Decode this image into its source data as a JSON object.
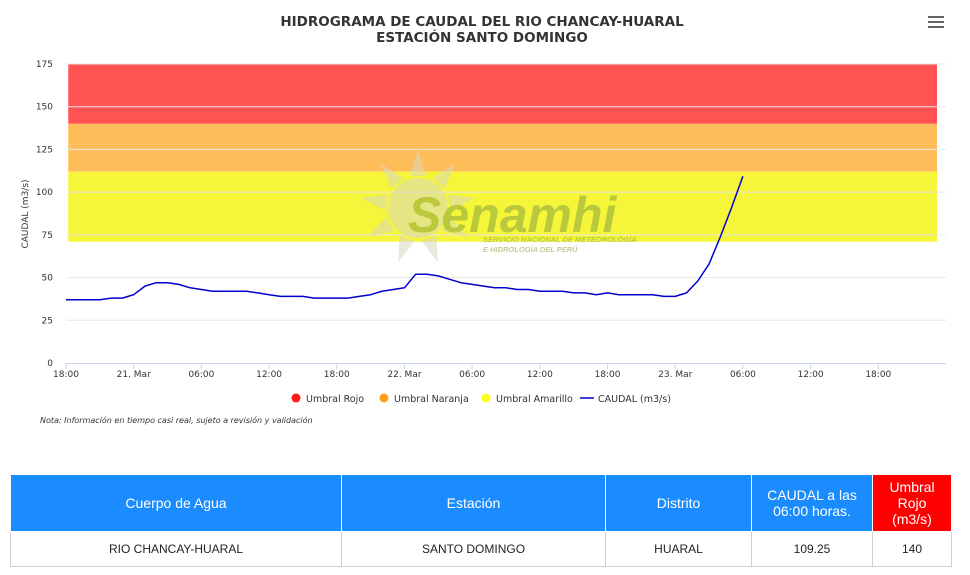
{
  "header": {
    "title_line1": "HIDROGRAMA DE CAUDAL DEL RIO CHANCAY-HUARAL",
    "title_line2": "ESTACIÓN SANTO DOMINGO",
    "menu_icon": "hamburger-menu-icon"
  },
  "watermark": {
    "brand": "Senamhi",
    "line1": "SERVICIO NACIONAL DE METEOROLOGÍA",
    "line2": "E HIDROLOGÍA DEL PERÚ"
  },
  "note": "Nota: Información en tiempo casi real, sujeto a revisión y validación",
  "chart_data": {
    "type": "line",
    "ylabel": "CAUDAL (m3/s)",
    "ylim": [
      0,
      175
    ],
    "yticks": [
      0,
      25,
      50,
      75,
      100,
      125,
      150,
      175
    ],
    "xlim_hours": [
      0,
      78
    ],
    "xticks": [
      {
        "h": 0,
        "label": "18:00"
      },
      {
        "h": 6,
        "label": "21. Mar"
      },
      {
        "h": 12,
        "label": "06:00"
      },
      {
        "h": 18,
        "label": "12:00"
      },
      {
        "h": 24,
        "label": "18:00"
      },
      {
        "h": 30,
        "label": "22. Mar"
      },
      {
        "h": 36,
        "label": "06:00"
      },
      {
        "h": 42,
        "label": "12:00"
      },
      {
        "h": 48,
        "label": "18:00"
      },
      {
        "h": 54,
        "label": "23. Mar"
      },
      {
        "h": 60,
        "label": "06:00"
      },
      {
        "h": 66,
        "label": "12:00"
      },
      {
        "h": 72,
        "label": "18:00"
      }
    ],
    "grid": true,
    "legend_position": "bottom-center",
    "bands": [
      {
        "name": "Umbral Rojo",
        "from": 140,
        "to": 175,
        "color": "#ff5252",
        "legend_color": "#ff1a1a"
      },
      {
        "name": "Umbral Naranja",
        "from": 112,
        "to": 140,
        "color": "#ffbd5a",
        "legend_color": "#ff9f1a"
      },
      {
        "name": "Umbral Amarillo",
        "from": 71,
        "to": 112,
        "color": "#f5f53a",
        "legend_color": "#ffff1a"
      }
    ],
    "series": [
      {
        "name": "CAUDAL (m3/s)",
        "color": "#0000cc",
        "points": [
          [
            0,
            37
          ],
          [
            1,
            37
          ],
          [
            2,
            37
          ],
          [
            3,
            37
          ],
          [
            4,
            38
          ],
          [
            5,
            38
          ],
          [
            6,
            40
          ],
          [
            7,
            45
          ],
          [
            8,
            47
          ],
          [
            9,
            47
          ],
          [
            10,
            46
          ],
          [
            11,
            44
          ],
          [
            12,
            43
          ],
          [
            13,
            42
          ],
          [
            14,
            42
          ],
          [
            15,
            42
          ],
          [
            16,
            42
          ],
          [
            17,
            41
          ],
          [
            18,
            40
          ],
          [
            19,
            39
          ],
          [
            20,
            39
          ],
          [
            21,
            39
          ],
          [
            22,
            38
          ],
          [
            23,
            38
          ],
          [
            24,
            38
          ],
          [
            25,
            38
          ],
          [
            26,
            39
          ],
          [
            27,
            40
          ],
          [
            28,
            42
          ],
          [
            29,
            43
          ],
          [
            30,
            44
          ],
          [
            31,
            52
          ],
          [
            32,
            52
          ],
          [
            33,
            51
          ],
          [
            34,
            49
          ],
          [
            35,
            47
          ],
          [
            36,
            46
          ],
          [
            37,
            45
          ],
          [
            38,
            44
          ],
          [
            39,
            44
          ],
          [
            40,
            43
          ],
          [
            41,
            43
          ],
          [
            42,
            42
          ],
          [
            43,
            42
          ],
          [
            44,
            42
          ],
          [
            45,
            41
          ],
          [
            46,
            41
          ],
          [
            47,
            40
          ],
          [
            48,
            41
          ],
          [
            49,
            40
          ],
          [
            50,
            40
          ],
          [
            51,
            40
          ],
          [
            52,
            40
          ],
          [
            53,
            39
          ],
          [
            54,
            39
          ],
          [
            55,
            41
          ],
          [
            56,
            48
          ],
          [
            57,
            58
          ],
          [
            58,
            74
          ],
          [
            59,
            91
          ],
          [
            60,
            109.25
          ]
        ]
      }
    ]
  },
  "table": {
    "headers": [
      "Cuerpo de Agua",
      "Estación",
      "Distrito",
      "CAUDAL a las 06:00 horas.",
      "Umbral Rojo (m3/s)"
    ],
    "row": [
      "RIO CHANCAY-HUARAL",
      "SANTO DOMINGO",
      "HUARAL",
      "109.25",
      "140"
    ]
  }
}
